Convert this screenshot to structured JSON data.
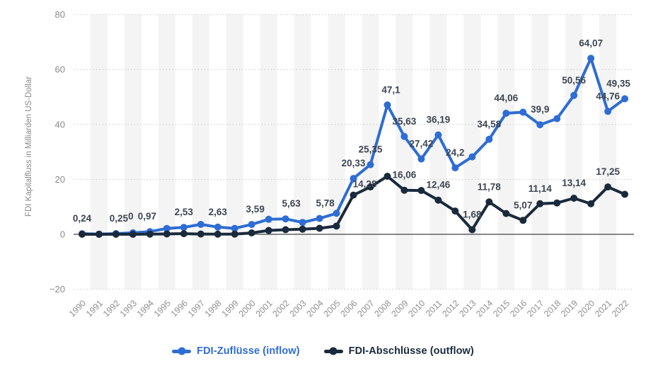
{
  "chart_data": {
    "type": "line",
    "title": "",
    "ylabel": "FDI Kapitalfluss in Milliarden US-Dollar",
    "xlabel": "",
    "x_categories": [
      1990,
      1991,
      1992,
      1993,
      1994,
      1995,
      1996,
      1997,
      1998,
      1999,
      2000,
      2001,
      2002,
      2003,
      2004,
      2005,
      2006,
      2007,
      2008,
      2009,
      2010,
      2011,
      2012,
      2013,
      2014,
      2015,
      2016,
      2017,
      2018,
      2019,
      2020,
      2021,
      2022
    ],
    "y_ticks": [
      80,
      60,
      40,
      20,
      0,
      -20
    ],
    "ylim": [
      -20,
      80
    ],
    "grid": "horizontal-dotted",
    "background_stripes": "alternating vertical bands on odd years",
    "legend_position": "bottom-center",
    "series": [
      {
        "id": "inflow",
        "name": "FDI-Zuflüsse (inflow)",
        "color": "#2e6dd3",
        "values": [
          0.24,
          0.07,
          0.25,
          0.53,
          0.97,
          2.15,
          2.53,
          3.62,
          2.63,
          2.17,
          3.59,
          5.47,
          5.63,
          4.32,
          5.78,
          7.62,
          20.33,
          25.35,
          47.1,
          35.63,
          27.42,
          36.19,
          24.2,
          28.2,
          34.58,
          44.06,
          44.46,
          39.9,
          42.12,
          50.56,
          64.07,
          44.76,
          49.35
        ],
        "point_labels": {
          "1990": "0,24",
          "1992": "0,25",
          "1994": "0,97",
          "1996": "2,53",
          "1998": "2,63",
          "2000": "3,59",
          "2002": "5,63",
          "2004": "5,78",
          "2006": "20,33",
          "2007": "25,35",
          "2008": "47,1",
          "2009": "35,63",
          "2010": "27,42",
          "2011": "36,19",
          "2012": "24,2",
          "2014": "34,58",
          "2015": "44,06",
          "2017": "39,9",
          "2019": "50,56",
          "2020": "64,07",
          "2021": "44,76",
          "2022": "49,35"
        }
      },
      {
        "id": "outflow",
        "name": "FDI-Abschlüsse (outflow)",
        "color": "#192a3c",
        "values": [
          0.02,
          0.0,
          0.02,
          0.0,
          0.08,
          0.12,
          0.24,
          0.11,
          0.05,
          0.08,
          0.51,
          1.4,
          1.68,
          1.88,
          2.18,
          2.98,
          14.28,
          17.23,
          21.14,
          16.06,
          15.95,
          12.46,
          8.49,
          1.68,
          11.78,
          7.57,
          5.07,
          11.14,
          11.42,
          13.14,
          11.11,
          17.25,
          14.56
        ],
        "point_labels": {
          "1993": "0",
          "2006": "14,28",
          "2009": "16,06",
          "2011": "12,46",
          "2013": "1,68",
          "2014": "11,78",
          "2016": "5,07",
          "2017": "11,14",
          "2019": "13,14",
          "2021": "17,25"
        }
      }
    ]
  },
  "colors": {
    "inflow": "#2e6dd3",
    "outflow": "#192a3c",
    "data_label": "#3d4553",
    "axis_text": "#8a8a8a",
    "gridline": "#c7c7c7",
    "zero_line": "#454545",
    "stripe": "#f4f4f4"
  }
}
